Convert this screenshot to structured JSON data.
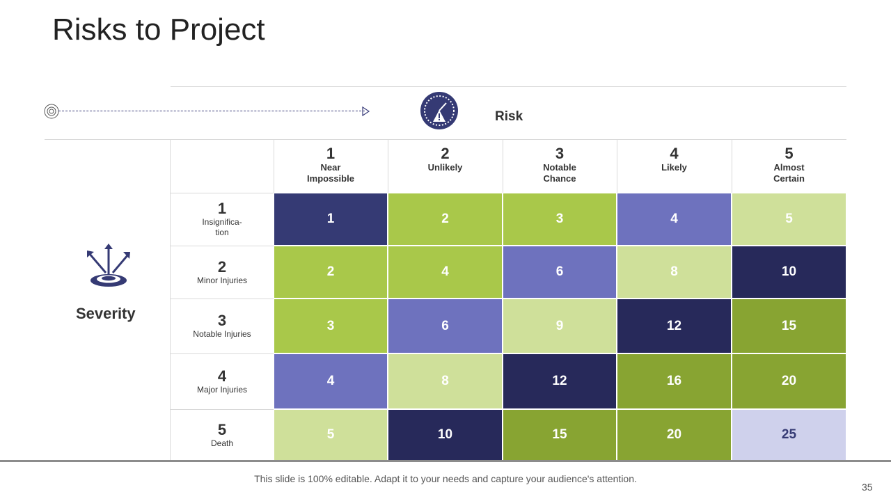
{
  "title": "Risks to Project",
  "risk_label": "Risk",
  "severity_label": "Severity",
  "columns": [
    {
      "num": "1",
      "label": "Near\nImpossible"
    },
    {
      "num": "2",
      "label": "Unlikely"
    },
    {
      "num": "3",
      "label": "Notable\nChance"
    },
    {
      "num": "4",
      "label": "Likely"
    },
    {
      "num": "5",
      "label": "Almost\nCertain"
    }
  ],
  "rows": [
    {
      "num": "1",
      "label": "Insignifica-\ntion"
    },
    {
      "num": "2",
      "label": "Minor Injuries"
    },
    {
      "num": "3",
      "label": "Notable Injuries"
    },
    {
      "num": "4",
      "label": "Major Injuries"
    },
    {
      "num": "5",
      "label": "Death"
    }
  ],
  "matrix": [
    [
      {
        "value": "1",
        "color": "#353a74"
      },
      {
        "value": "2",
        "color": "#a9c84a"
      },
      {
        "value": "3",
        "color": "#a9c84a"
      },
      {
        "value": "4",
        "color": "#6e72be"
      },
      {
        "value": "5",
        "color": "#cfe09a"
      }
    ],
    [
      {
        "value": "2",
        "color": "#a9c84a"
      },
      {
        "value": "4",
        "color": "#a9c84a"
      },
      {
        "value": "6",
        "color": "#6e72be"
      },
      {
        "value": "8",
        "color": "#cfe09a"
      },
      {
        "value": "10",
        "color": "#27295a"
      }
    ],
    [
      {
        "value": "3",
        "color": "#a9c84a"
      },
      {
        "value": "6",
        "color": "#6e72be"
      },
      {
        "value": "9",
        "color": "#cfe09a"
      },
      {
        "value": "12",
        "color": "#27295a"
      },
      {
        "value": "15",
        "color": "#88a432"
      }
    ],
    [
      {
        "value": "4",
        "color": "#6e72be"
      },
      {
        "value": "8",
        "color": "#cfe09a"
      },
      {
        "value": "12",
        "color": "#27295a"
      },
      {
        "value": "16",
        "color": "#88a432"
      },
      {
        "value": "20",
        "color": "#88a432"
      }
    ],
    [
      {
        "value": "5",
        "color": "#cfe09a"
      },
      {
        "value": "10",
        "color": "#27295a"
      },
      {
        "value": "15",
        "color": "#88a432"
      },
      {
        "value": "20",
        "color": "#88a432"
      },
      {
        "value": "25",
        "color": "#cfd1ec"
      }
    ]
  ],
  "accent_color": "#353a74",
  "footer_text": "This slide is 100% editable. Adapt it to your needs and capture your audience's attention.",
  "page_number": "35"
}
